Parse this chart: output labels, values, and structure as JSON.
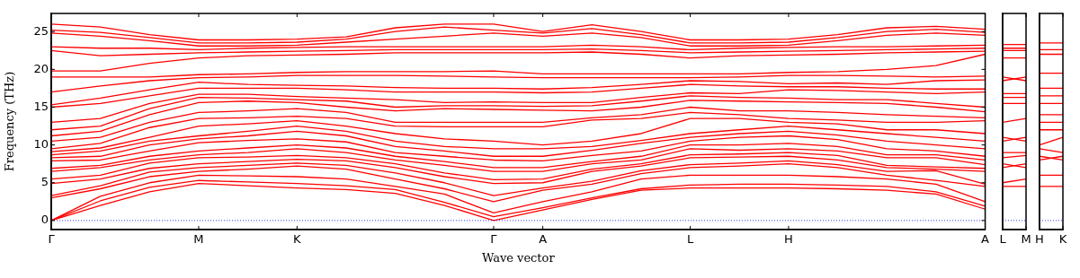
{
  "chart_data": [
    {
      "type": "line",
      "xlabel": "Wave vector",
      "ylabel": "Frequency (THz)",
      "categories": [
        "Γ",
        null,
        null,
        "M",
        null,
        "K",
        null,
        null,
        null,
        "Γ",
        "A",
        null,
        null,
        "L",
        null,
        "H",
        null,
        null,
        null,
        "A"
      ],
      "ylim": [
        -1.2,
        27.4
      ],
      "yticks": [
        0,
        5,
        10,
        15,
        20,
        25
      ],
      "ref_lines": [
        {
          "axis": "y",
          "value": 0,
          "color": "#0000ff",
          "line_style": "dotted"
        }
      ],
      "series": [
        {
          "color": "#ff0000",
          "values": [
            0,
            2.0,
            3.8,
            4.9,
            4.6,
            4.3,
            4.1,
            3.6,
            2.0,
            0,
            1.4,
            2.8,
            4.0,
            4.3,
            4.3,
            4.3,
            4.2,
            4.0,
            3.5,
            1.5
          ]
        },
        {
          "color": "#ff0000",
          "values": [
            0,
            2.6,
            4.4,
            5.3,
            5.1,
            4.9,
            4.6,
            4.1,
            2.4,
            0.5,
            1.7,
            3.0,
            4.2,
            4.7,
            4.8,
            4.8,
            4.7,
            4.5,
            3.8,
            1.9
          ]
        },
        {
          "color": "#ff0000",
          "values": [
            0,
            3.2,
            5.0,
            6.0,
            5.9,
            5.8,
            5.5,
            4.5,
            3.5,
            1.0,
            2.5,
            3.8,
            5.5,
            6.0,
            6.0,
            6.0,
            5.8,
            5.5,
            4.8,
            2.5
          ]
        },
        {
          "color": "#ff0000",
          "values": [
            3.0,
            4.2,
            5.8,
            6.5,
            6.8,
            7.2,
            6.8,
            5.5,
            4.2,
            2.5,
            4.0,
            4.8,
            6.2,
            7.0,
            7.2,
            7.5,
            7.0,
            6.0,
            5.3,
            4.5
          ]
        },
        {
          "color": "#ff0000",
          "values": [
            3.3,
            4.6,
            6.4,
            7.0,
            7.3,
            7.6,
            7.3,
            6.3,
            5.0,
            3.3,
            4.3,
            5.2,
            6.6,
            7.4,
            7.6,
            7.9,
            7.4,
            6.5,
            6.6,
            4.8
          ]
        },
        {
          "color": "#ff0000",
          "values": [
            4.9,
            5.5,
            6.9,
            7.5,
            7.8,
            8.1,
            7.9,
            7.0,
            5.8,
            4.9,
            5.0,
            6.5,
            7.2,
            8.3,
            8.4,
            8.5,
            8.0,
            7.0,
            6.8,
            6.5
          ]
        },
        {
          "color": "#ff0000",
          "values": [
            5.5,
            6.0,
            7.6,
            8.3,
            8.4,
            8.6,
            8.3,
            7.5,
            6.3,
            5.4,
            5.5,
            6.8,
            7.5,
            8.7,
            8.8,
            9.0,
            8.6,
            7.3,
            7.1,
            6.9
          ]
        },
        {
          "color": "#ff0000",
          "values": [
            6.5,
            7.0,
            8.0,
            8.7,
            9.0,
            9.5,
            9.0,
            8.0,
            7.3,
            6.5,
            6.5,
            7.5,
            8.0,
            9.5,
            9.3,
            9.5,
            9.2,
            8.3,
            8.3,
            7.4
          ]
        },
        {
          "color": "#ff0000",
          "values": [
            6.9,
            7.3,
            8.5,
            9.2,
            9.6,
            10.0,
            9.6,
            8.5,
            7.8,
            7.0,
            7.0,
            7.8,
            8.5,
            10.0,
            10.0,
            10.2,
            9.8,
            8.7,
            8.7,
            8.0
          ]
        },
        {
          "color": "#ff0000",
          "values": [
            7.9,
            8.0,
            9.2,
            10.3,
            10.6,
            10.8,
            10.4,
            9.0,
            8.5,
            8.0,
            7.9,
            8.6,
            9.2,
            10.5,
            11.0,
            11.2,
            10.7,
            9.5,
            9.2,
            8.5
          ]
        },
        {
          "color": "#ff0000",
          "values": [
            8.3,
            8.5,
            10.0,
            10.8,
            11.2,
            11.8,
            11.2,
            9.8,
            9.2,
            8.5,
            8.5,
            9.3,
            10.2,
            11.0,
            11.5,
            11.8,
            11.3,
            10.5,
            10.0,
            9.5
          ]
        },
        {
          "color": "#ff0000",
          "values": [
            8.7,
            9.2,
            10.5,
            11.2,
            11.8,
            12.5,
            11.8,
            10.5,
            9.8,
            9.5,
            9.5,
            9.8,
            10.6,
            11.5,
            12.0,
            12.5,
            12.0,
            11.5,
            11.0,
            10.5
          ]
        },
        {
          "color": "#ff0000",
          "values": [
            9.1,
            9.6,
            11.0,
            12.5,
            12.8,
            13.2,
            12.5,
            11.5,
            10.8,
            10.5,
            10.0,
            10.5,
            11.5,
            13.5,
            13.5,
            13.0,
            12.8,
            12.0,
            12.0,
            11.5
          ]
        },
        {
          "color": "#ff0000",
          "values": [
            9.5,
            10.2,
            12.3,
            13.5,
            13.6,
            13.8,
            13.5,
            12.5,
            12.4,
            12.4,
            12.4,
            13.3,
            13.5,
            14.3,
            14.0,
            13.5,
            13.3,
            13.0,
            13.0,
            13.2
          ]
        },
        {
          "color": "#ff0000",
          "values": [
            10.5,
            11.0,
            13.0,
            14.3,
            14.5,
            14.8,
            14.3,
            13.0,
            13.0,
            13.0,
            13.0,
            13.6,
            14.0,
            15.0,
            14.5,
            14.5,
            14.3,
            14.0,
            13.8,
            13.6
          ]
        },
        {
          "color": "#ff0000",
          "values": [
            11.2,
            11.8,
            14.0,
            15.6,
            15.8,
            15.6,
            15.0,
            14.5,
            14.8,
            14.7,
            14.6,
            14.5,
            15.0,
            15.9,
            15.8,
            15.7,
            15.6,
            15.5,
            15.0,
            14.4
          ]
        },
        {
          "color": "#ff0000",
          "values": [
            12.0,
            12.5,
            14.8,
            16.3,
            16.2,
            16.0,
            15.8,
            15.0,
            15.2,
            15.2,
            15.1,
            15.2,
            15.8,
            16.5,
            16.3,
            16.2,
            16.0,
            16.0,
            15.5,
            15.0
          ]
        },
        {
          "color": "#ff0000",
          "values": [
            13.0,
            13.5,
            15.5,
            16.7,
            16.7,
            16.4,
            16.2,
            16.0,
            15.6,
            15.7,
            15.6,
            15.6,
            16.3,
            16.9,
            16.8,
            17.3,
            17.2,
            17.0,
            16.8,
            17.0
          ]
        },
        {
          "color": "#ff0000",
          "values": [
            15.0,
            15.5,
            16.5,
            17.5,
            17.5,
            17.5,
            17.3,
            17.0,
            17.0,
            17.0,
            16.9,
            17.0,
            17.5,
            18.0,
            17.8,
            17.7,
            17.7,
            17.5,
            17.4,
            17.4
          ]
        },
        {
          "color": "#ff0000",
          "values": [
            15.3,
            16.2,
            17.3,
            18.3,
            18.0,
            17.9,
            17.8,
            17.6,
            17.5,
            17.5,
            17.4,
            17.6,
            18.0,
            18.5,
            18.4,
            18.1,
            18.2,
            18.0,
            18.5,
            18.6
          ]
        },
        {
          "color": "#ff0000",
          "values": [
            17.0,
            17.8,
            18.5,
            18.9,
            19.0,
            19.2,
            19.2,
            19.2,
            19.1,
            19.0,
            18.9,
            18.9,
            18.9,
            18.9,
            19.0,
            19.2,
            19.2,
            19.1,
            19.0,
            19.1
          ]
        },
        {
          "color": "#ff0000",
          "values": [
            19.0,
            19.0,
            19.0,
            19.3,
            19.4,
            19.6,
            19.7,
            19.7,
            19.7,
            19.8,
            19.4,
            19.4,
            19.4,
            19.4,
            19.4,
            19.6,
            19.7,
            20.0,
            20.5,
            22.0
          ]
        },
        {
          "color": "#ff0000",
          "values": [
            19.8,
            19.8,
            20.8,
            21.5,
            21.8,
            21.9,
            22.0,
            22.2,
            22.2,
            22.2,
            22.2,
            22.3,
            22.0,
            21.5,
            21.8,
            21.9,
            22.0,
            22.2,
            22.3,
            22.4
          ]
        },
        {
          "color": "#ff0000",
          "values": [
            22.5,
            21.8,
            22.0,
            22.2,
            22.3,
            22.4,
            22.5,
            22.6,
            22.6,
            22.6,
            22.6,
            22.7,
            22.5,
            22.2,
            22.3,
            22.4,
            22.5,
            22.6,
            22.7,
            22.8
          ]
        },
        {
          "color": "#ff0000",
          "values": [
            23.0,
            22.8,
            22.8,
            22.6,
            22.8,
            22.9,
            23.0,
            23.0,
            23.0,
            23.0,
            23.0,
            23.2,
            23.0,
            22.6,
            22.8,
            22.9,
            23.0,
            23.0,
            23.1,
            23.2
          ]
        },
        {
          "color": "#ff0000",
          "values": [
            24.8,
            24.4,
            23.8,
            23.1,
            23.1,
            23.2,
            23.6,
            24.0,
            24.4,
            24.8,
            24.4,
            24.8,
            24.2,
            23.1,
            23.1,
            23.2,
            23.8,
            24.5,
            24.8,
            24.5
          ]
        },
        {
          "color": "#ff0000",
          "values": [
            25.2,
            24.9,
            24.2,
            23.5,
            23.5,
            23.6,
            24.0,
            25.0,
            25.6,
            25.2,
            24.8,
            25.4,
            24.6,
            23.5,
            23.5,
            23.6,
            24.2,
            25.0,
            25.3,
            24.9
          ]
        },
        {
          "color": "#ff0000",
          "values": [
            26.0,
            25.6,
            24.6,
            23.9,
            23.9,
            24.0,
            24.3,
            25.5,
            26.0,
            26.0,
            25.0,
            25.9,
            25.0,
            23.9,
            23.9,
            24.0,
            24.6,
            25.5,
            25.7,
            25.3
          ]
        }
      ]
    },
    {
      "type": "line",
      "categories": [
        "L",
        "M"
      ],
      "tick_labels": "x",
      "ylim": [
        -1.2,
        27.4
      ],
      "ref_lines": [
        {
          "axis": "y",
          "value": 0,
          "color": "#0000ff",
          "line_style": "dotted"
        }
      ],
      "series": [
        {
          "color": "#ff0000",
          "values": [
            4.5,
            4.5
          ]
        },
        {
          "color": "#ff0000",
          "values": [
            5.0,
            5.5
          ]
        },
        {
          "color": "#ff0000",
          "values": [
            7.0,
            7.5
          ]
        },
        {
          "color": "#ff0000",
          "values": [
            7.5,
            7.0
          ]
        },
        {
          "color": "#ff0000",
          "values": [
            8.3,
            8.6
          ]
        },
        {
          "color": "#ff0000",
          "values": [
            9.0,
            9.0
          ]
        },
        {
          "color": "#ff0000",
          "values": [
            10.5,
            11.0
          ]
        },
        {
          "color": "#ff0000",
          "values": [
            11.0,
            10.5
          ]
        },
        {
          "color": "#ff0000",
          "values": [
            13.0,
            13.5
          ]
        },
        {
          "color": "#ff0000",
          "values": [
            15.5,
            15.5
          ]
        },
        {
          "color": "#ff0000",
          "values": [
            16.3,
            16.3
          ]
        },
        {
          "color": "#ff0000",
          "values": [
            16.8,
            16.8
          ]
        },
        {
          "color": "#ff0000",
          "values": [
            18.5,
            19.0
          ]
        },
        {
          "color": "#ff0000",
          "values": [
            19.0,
            18.5
          ]
        },
        {
          "color": "#ff0000",
          "values": [
            21.5,
            21.5
          ]
        },
        {
          "color": "#ff0000",
          "values": [
            22.5,
            22.5
          ]
        },
        {
          "color": "#ff0000",
          "values": [
            22.8,
            22.8
          ]
        },
        {
          "color": "#ff0000",
          "values": [
            23.3,
            23.3
          ]
        }
      ]
    },
    {
      "type": "line",
      "categories": [
        "H",
        "K"
      ],
      "tick_labels": "x",
      "ylim": [
        -1.2,
        27.4
      ],
      "ref_lines": [
        {
          "axis": "y",
          "value": 0,
          "color": "#0000ff",
          "line_style": "dotted"
        }
      ],
      "series": [
        {
          "color": "#ff0000",
          "values": [
            4.5,
            4.5
          ]
        },
        {
          "color": "#ff0000",
          "values": [
            6.0,
            6.0
          ]
        },
        {
          "color": "#ff0000",
          "values": [
            8.0,
            8.5
          ]
        },
        {
          "color": "#ff0000",
          "values": [
            8.5,
            8.0
          ]
        },
        {
          "color": "#ff0000",
          "values": [
            9.5,
            9.0
          ]
        },
        {
          "color": "#ff0000",
          "values": [
            10.0,
            11.0
          ]
        },
        {
          "color": "#ff0000",
          "values": [
            12.0,
            12.0
          ]
        },
        {
          "color": "#ff0000",
          "values": [
            13.0,
            13.0
          ]
        },
        {
          "color": "#ff0000",
          "values": [
            14.0,
            14.0
          ]
        },
        {
          "color": "#ff0000",
          "values": [
            15.5,
            15.5
          ]
        },
        {
          "color": "#ff0000",
          "values": [
            16.5,
            16.5
          ]
        },
        {
          "color": "#ff0000",
          "values": [
            17.5,
            17.5
          ]
        },
        {
          "color": "#ff0000",
          "values": [
            19.5,
            19.5
          ]
        },
        {
          "color": "#ff0000",
          "values": [
            22.0,
            22.0
          ]
        },
        {
          "color": "#ff0000",
          "values": [
            22.6,
            22.6
          ]
        },
        {
          "color": "#ff0000",
          "values": [
            23.5,
            23.5
          ]
        }
      ]
    }
  ]
}
